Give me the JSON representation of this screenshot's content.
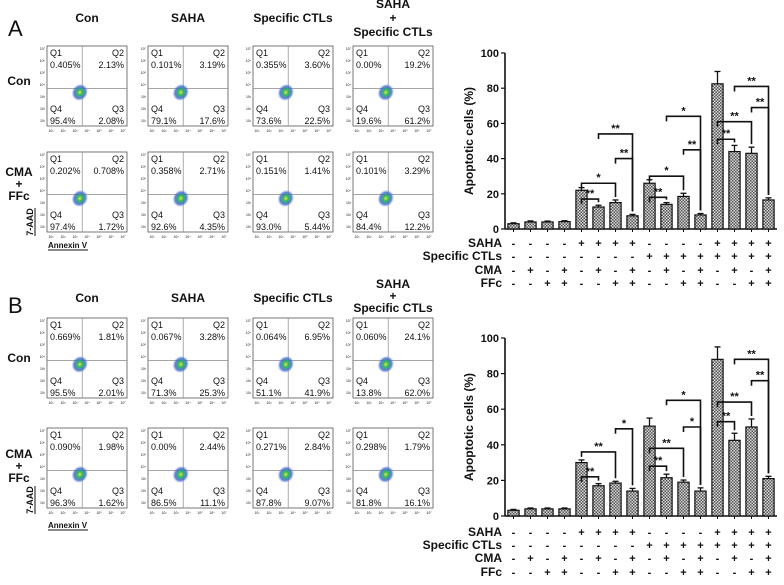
{
  "panels": [
    {
      "label": "A",
      "column_headers": [
        [
          "Con"
        ],
        [
          "SAHA"
        ],
        [
          "Specific CTLs"
        ],
        [
          "SAHA",
          "+",
          "Specific CTLs"
        ]
      ],
      "row_labels": [
        [
          "Con"
        ],
        [
          "CMA",
          "+",
          "FFc"
        ]
      ],
      "y_axis_label": "7-AAD",
      "x_axis_label": "Annexin V",
      "axis_ticks": [
        "10¹",
        "10²",
        "10³",
        "10⁴",
        "10⁵",
        "10⁶",
        "10⁷"
      ],
      "quadrant_names": [
        "Q1",
        "Q2",
        "Q3",
        "Q4"
      ],
      "flow_plots": [
        [
          {
            "Q1": "0.405%",
            "Q2": "2.13%",
            "Q3": "2.08%",
            "Q4": "95.4%"
          },
          {
            "Q1": "0.101%",
            "Q2": "3.19%",
            "Q3": "17.6%",
            "Q4": "79.1%"
          },
          {
            "Q1": "0.355%",
            "Q2": "3.60%",
            "Q3": "22.5%",
            "Q4": "73.6%"
          },
          {
            "Q1": "0.00%",
            "Q2": "19.2%",
            "Q3": "61.2%",
            "Q4": "19.6%"
          }
        ],
        [
          {
            "Q1": "0.202%",
            "Q2": "0.708%",
            "Q3": "1.72%",
            "Q4": "97.4%"
          },
          {
            "Q1": "0.358%",
            "Q2": "2.71%",
            "Q3": "4.35%",
            "Q4": "92.6%"
          },
          {
            "Q1": "0.151%",
            "Q2": "1.41%",
            "Q3": "5.44%",
            "Q4": "93.0%"
          },
          {
            "Q1": "0.101%",
            "Q2": "3.29%",
            "Q3": "12.2%",
            "Q4": "84.4%"
          }
        ]
      ]
    },
    {
      "label": "B",
      "column_headers": [
        [
          "Con"
        ],
        [
          "SAHA"
        ],
        [
          "Specific CTLs"
        ],
        [
          "SAHA",
          "+",
          "Specific CTLs"
        ]
      ],
      "row_labels": [
        [
          "Con"
        ],
        [
          "CMA",
          "+",
          "FFc"
        ]
      ],
      "y_axis_label": "7-AAD",
      "x_axis_label": "Annexin V",
      "axis_ticks": [
        "10¹",
        "10²",
        "10³",
        "10⁴",
        "10⁵",
        "10⁶",
        "10⁷"
      ],
      "quadrant_names": [
        "Q1",
        "Q2",
        "Q3",
        "Q4"
      ],
      "flow_plots": [
        [
          {
            "Q1": "0.669%",
            "Q2": "1.81%",
            "Q3": "2.01%",
            "Q4": "95.5%"
          },
          {
            "Q1": "0.067%",
            "Q2": "3.28%",
            "Q3": "25.3%",
            "Q4": "71.3%"
          },
          {
            "Q1": "0.064%",
            "Q2": "6.95%",
            "Q3": "41.9%",
            "Q4": "51.1%"
          },
          {
            "Q1": "0.060%",
            "Q2": "24.1%",
            "Q3": "62.0%",
            "Q4": "13.8%"
          }
        ],
        [
          {
            "Q1": "0.090%",
            "Q2": "1.98%",
            "Q3": "1.62%",
            "Q4": "96.3%"
          },
          {
            "Q1": "0.00%",
            "Q2": "2.44%",
            "Q3": "11.1%",
            "Q4": "86.5%"
          },
          {
            "Q1": "0.271%",
            "Q2": "2.84%",
            "Q3": "9.07%",
            "Q4": "87.8%"
          },
          {
            "Q1": "0.298%",
            "Q2": "1.79%",
            "Q3": "16.1%",
            "Q4": "81.8%"
          }
        ]
      ]
    }
  ],
  "chart_data": [
    {
      "type": "bar",
      "panel": "A",
      "ylabel": "Apoptotic cells (%)",
      "ylim": [
        0,
        100
      ],
      "yticks": [
        0,
        20,
        40,
        60,
        80,
        100
      ],
      "values": [
        3,
        4,
        4,
        4.2,
        22,
        12.5,
        15,
        7.5,
        26,
        14,
        18.5,
        8,
        82.5,
        44,
        43,
        16.5
      ],
      "errors": [
        0.5,
        0.6,
        0.5,
        0.5,
        1.5,
        1,
        1.5,
        0.8,
        2,
        1,
        1.8,
        0.8,
        7,
        3.5,
        3.5,
        1.2
      ],
      "condition_rows": [
        {
          "label": "SAHA",
          "signs": [
            "-",
            "-",
            "-",
            "-",
            "+",
            "+",
            "+",
            "+",
            "-",
            "-",
            "-",
            "-",
            "+",
            "+",
            "+",
            "+"
          ]
        },
        {
          "label": "Specific CTLs",
          "signs": [
            "-",
            "-",
            "-",
            "-",
            "-",
            "-",
            "-",
            "-",
            "+",
            "+",
            "+",
            "+",
            "+",
            "+",
            "+",
            "+"
          ]
        },
        {
          "label": "CMA",
          "signs": [
            "-",
            "+",
            "-",
            "+",
            "-",
            "+",
            "-",
            "+",
            "-",
            "+",
            "-",
            "+",
            "-",
            "+",
            "-",
            "+"
          ]
        },
        {
          "label": "FFc",
          "signs": [
            "-",
            "-",
            "+",
            "+",
            "-",
            "-",
            "+",
            "+",
            "-",
            "-",
            "+",
            "+",
            "-",
            "-",
            "+",
            "+"
          ]
        }
      ],
      "significance": [
        {
          "from": 4,
          "to": 5,
          "label": "**",
          "y": 17
        },
        {
          "from": 4,
          "to": 6,
          "label": "*",
          "y": 26
        },
        {
          "from": 6,
          "to": 7,
          "label": "**",
          "y": 40
        },
        {
          "from": 5,
          "to": 7,
          "label": "**",
          "y": 54
        },
        {
          "from": 8,
          "to": 9,
          "label": "**",
          "y": 18
        },
        {
          "from": 8,
          "to": 10,
          "label": "*",
          "y": 30
        },
        {
          "from": 10,
          "to": 11,
          "label": "**",
          "y": 45
        },
        {
          "from": 9,
          "to": 11,
          "label": "*",
          "y": 64
        },
        {
          "from": 12,
          "to": 13,
          "label": "**",
          "y": 51
        },
        {
          "from": 12,
          "to": 14,
          "label": "**",
          "y": 61
        },
        {
          "from": 14,
          "to": 15,
          "label": "**",
          "y": 69
        },
        {
          "from": 13,
          "to": 15,
          "label": "**",
          "y": 81
        }
      ]
    },
    {
      "type": "bar",
      "panel": "B",
      "ylabel": "Apoptotic cells (%)",
      "ylim": [
        0,
        100
      ],
      "yticks": [
        0,
        20,
        40,
        60,
        80,
        100
      ],
      "values": [
        3.2,
        4,
        4,
        4,
        30,
        17,
        18.5,
        14,
        50.5,
        21.5,
        19,
        14,
        88,
        42.5,
        50,
        21
      ],
      "errors": [
        0.5,
        0.5,
        0.5,
        0.5,
        1.5,
        1.2,
        1,
        1.5,
        4.5,
        2,
        1.2,
        1.8,
        7,
        4,
        4.5,
        1.3
      ],
      "condition_rows": [
        {
          "label": "SAHA",
          "signs": [
            "-",
            "-",
            "-",
            "-",
            "+",
            "+",
            "+",
            "+",
            "-",
            "-",
            "-",
            "-",
            "+",
            "+",
            "+",
            "+"
          ]
        },
        {
          "label": "Specific CTLs",
          "signs": [
            "-",
            "-",
            "-",
            "-",
            "-",
            "-",
            "-",
            "-",
            "+",
            "+",
            "+",
            "+",
            "+",
            "+",
            "+",
            "+"
          ]
        },
        {
          "label": "CMA",
          "signs": [
            "-",
            "+",
            "-",
            "+",
            "-",
            "+",
            "-",
            "+",
            "-",
            "+",
            "-",
            "+",
            "-",
            "+",
            "-",
            "+"
          ]
        },
        {
          "label": "FFc",
          "signs": [
            "-",
            "-",
            "+",
            "+",
            "-",
            "-",
            "+",
            "+",
            "-",
            "-",
            "+",
            "+",
            "-",
            "-",
            "+",
            "+"
          ]
        }
      ],
      "significance": [
        {
          "from": 4,
          "to": 5,
          "label": "**",
          "y": 22
        },
        {
          "from": 4,
          "to": 6,
          "label": "**",
          "y": 36
        },
        {
          "from": 6,
          "to": 7,
          "label": "*",
          "y": 49
        },
        {
          "from": 8,
          "to": 9,
          "label": "**",
          "y": 28
        },
        {
          "from": 8,
          "to": 10,
          "label": "**",
          "y": 38
        },
        {
          "from": 10,
          "to": 11,
          "label": "*",
          "y": 50
        },
        {
          "from": 9,
          "to": 11,
          "label": "*",
          "y": 65
        },
        {
          "from": 12,
          "to": 13,
          "label": "**",
          "y": 53
        },
        {
          "from": 12,
          "to": 14,
          "label": "**",
          "y": 64
        },
        {
          "from": 14,
          "to": 15,
          "label": "**",
          "y": 76
        },
        {
          "from": 13,
          "to": 15,
          "label": "**",
          "y": 88
        }
      ]
    }
  ],
  "colors": {
    "bar_fill": "#9a9a9a",
    "ink": "#111111",
    "dot_core": "#2fbf5a",
    "dot_outer": "#3a5fd0"
  }
}
